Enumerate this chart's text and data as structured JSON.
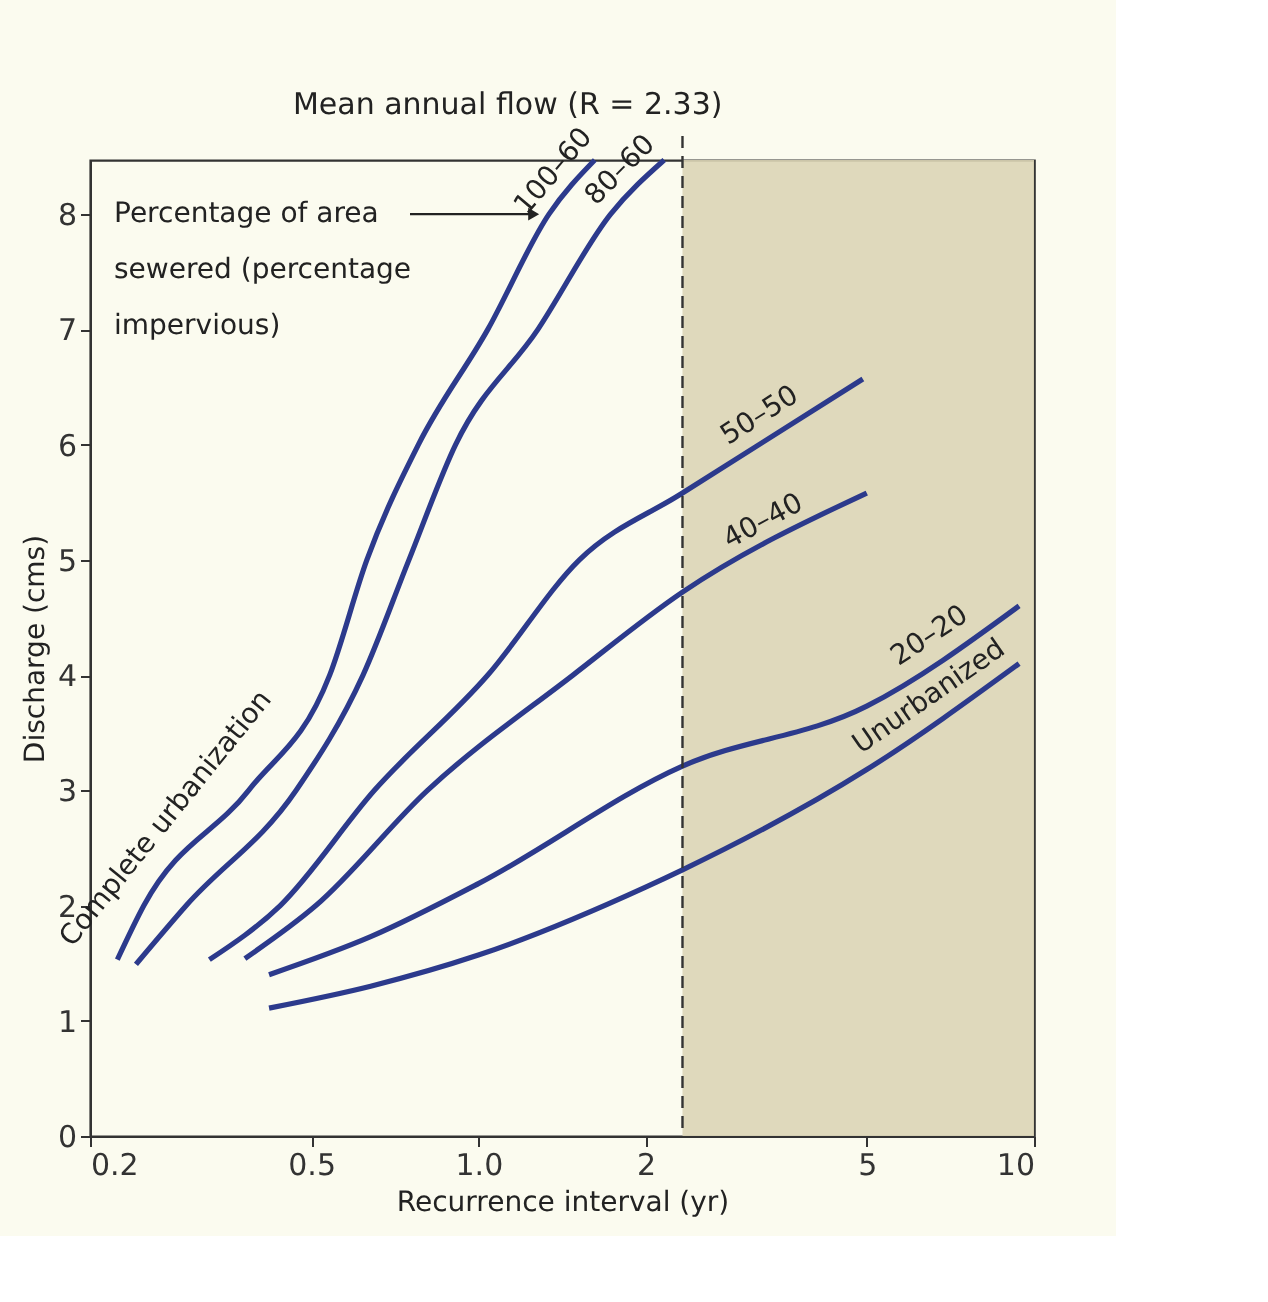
{
  "chart_data": {
    "type": "line",
    "xlabel": "Recurrence interval (yr)",
    "ylabel": "Discharge (cms)",
    "log": "x",
    "xlim": [
      0.2,
      10
    ],
    "xticks": [
      0.2,
      0.5,
      {
        "value": 1,
        "label": "1.0"
      },
      2,
      5,
      10
    ],
    "ylim": [
      0,
      8.47
    ],
    "yticks": [
      0,
      1,
      2,
      3,
      4,
      5,
      6,
      7,
      8
    ],
    "grid": false,
    "marker": "none",
    "line_style": "solid",
    "series": [
      {
        "name": "100–60",
        "color": "#2c3a8c",
        "x": [
          0.224,
          0.25,
          0.386,
          0.54,
          0.63,
          0.78,
          1.04,
          1.34,
          1.62
        ],
        "values": [
          1.53,
          2,
          3,
          4,
          5,
          6,
          7,
          8,
          8.47
        ]
      },
      {
        "name": "80–60",
        "color": "#2c3a8c",
        "x": [
          0.242,
          0.298,
          0.47,
          0.62,
          0.75,
          0.91,
          1.28,
          1.73,
          2.16
        ],
        "values": [
          1.49,
          2,
          3,
          4,
          5,
          6,
          7,
          8,
          8.47
        ]
      },
      {
        "name": "50–50",
        "color": "#2c3a8c",
        "x": [
          0.328,
          0.44,
          0.65,
          1.04,
          1.52,
          2.33,
          4.92
        ],
        "values": [
          1.53,
          2,
          3,
          4,
          5,
          5.58,
          6.57
        ]
      },
      {
        "name": "40–40",
        "color": "#2c3a8c",
        "x": [
          0.38,
          0.51,
          0.81,
          1.48,
          2.33,
          5.0
        ],
        "values": [
          1.54,
          2,
          3,
          4,
          4.72,
          5.58
        ]
      },
      {
        "name": "20–20",
        "color": "#2c3a8c",
        "x": [
          0.42,
          0.64,
          1.0,
          2.33,
          5.0,
          9.4
        ],
        "values": [
          1.4,
          1.73,
          2.19,
          3.21,
          3.73,
          4.6
        ]
      },
      {
        "name": "Unurbanized",
        "color": "#2c3a8c",
        "x": [
          0.42,
          0.64,
          1.0,
          2.0,
          2.33,
          5.0,
          9.4
        ],
        "values": [
          1.11,
          1.3,
          1.57,
          2.16,
          2.31,
          3.18,
          4.1
        ]
      }
    ],
    "ref_lines": [
      {
        "axis": "x",
        "value": 2.33,
        "label": "Mean annual flow (R = 2.33)",
        "color": "#333333",
        "line_style": "dashed"
      }
    ],
    "bands": [
      {
        "axis": "x",
        "from": 2.33,
        "to": 10,
        "color": "#dcd5b6"
      }
    ],
    "annotations": [
      {
        "text": "Complete urbanization",
        "x": 0.3,
        "y": 2.6
      },
      {
        "text": "Percentage of area sewered (percentage impervious)",
        "x": 1.3,
        "y": 8
      }
    ]
  }
}
